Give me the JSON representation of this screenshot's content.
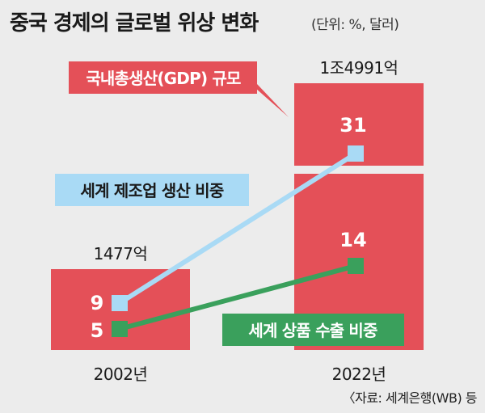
{
  "header": {
    "title": "중국 경제의 글로벌 위상 변화",
    "unit": "(단위: %, 달러)"
  },
  "footer": {
    "source": "〈자료: 세계은행(WB) 등"
  },
  "colors": {
    "background": "#ececec",
    "gdp_bar": "#e45058",
    "manufacturing": "#a9daf5",
    "exports": "#3aa05c"
  },
  "chart_data": {
    "type": "bar",
    "categories": [
      "2002년",
      "2022년"
    ],
    "series": [
      {
        "name": "국내총생산(GDP) 규모",
        "type": "bar",
        "values": [
          1477,
          14991
        ],
        "labels": [
          "1477억",
          "1조4991억"
        ]
      },
      {
        "name": "세계 제조업 생산 비중",
        "type": "line",
        "values": [
          9,
          31
        ]
      },
      {
        "name": "세계 상품 수출 비중",
        "type": "line",
        "values": [
          5,
          14
        ]
      }
    ]
  }
}
